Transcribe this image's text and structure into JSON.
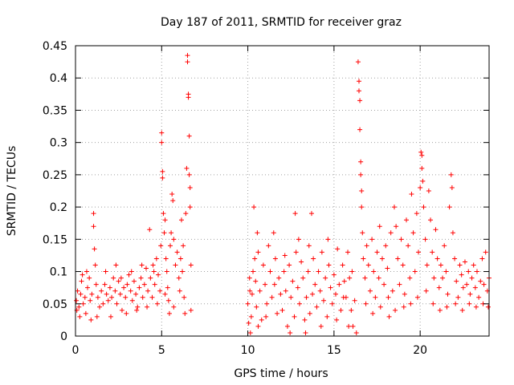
{
  "chart_data": {
    "type": "scatter",
    "title": "Day 187 of 2011, SRMTID for receiver graz",
    "xlabel": "GPS time / hours",
    "ylabel": "SRMTID / TECUs",
    "xlim": [
      0,
      24
    ],
    "ylim": [
      0,
      0.45
    ],
    "xticks": [
      0,
      5,
      10,
      15,
      20
    ],
    "xtick_labels": [
      "0",
      "5",
      "10",
      "15",
      "20"
    ],
    "yticks": [
      0,
      0.05,
      0.1,
      0.15,
      0.2,
      0.25,
      0.3,
      0.35,
      0.4,
      0.45
    ],
    "ytick_labels": [
      "0",
      "0.05",
      "0.1",
      "0.15",
      "0.2",
      "0.25",
      "0.3",
      "0.35",
      "0.4",
      "0.45"
    ],
    "grid": true,
    "marker": "+",
    "color": "#ff0000",
    "series": [
      {
        "name": "SRMTID",
        "points": [
          [
            0.05,
            0.055
          ],
          [
            0.12,
            0.07
          ],
          [
            0.2,
            0.045
          ],
          [
            0.3,
            0.065
          ],
          [
            0.35,
            0.085
          ],
          [
            0.45,
            0.05
          ],
          [
            0.55,
            0.06
          ],
          [
            0.6,
            0.035
          ],
          [
            0.7,
            0.075
          ],
          [
            0.8,
            0.09
          ],
          [
            0.85,
            0.055
          ],
          [
            0.95,
            0.065
          ],
          [
            1.05,
            0.19
          ],
          [
            1.05,
            0.17
          ],
          [
            1.1,
            0.135
          ],
          [
            1.15,
            0.11
          ],
          [
            1.2,
            0.08
          ],
          [
            1.3,
            0.06
          ],
          [
            1.4,
            0.045
          ],
          [
            1.5,
            0.07
          ],
          [
            1.6,
            0.05
          ],
          [
            1.7,
            0.08
          ],
          [
            1.8,
            0.065
          ],
          [
            1.9,
            0.055
          ],
          [
            2.0,
            0.075
          ],
          [
            2.1,
            0.06
          ],
          [
            2.2,
            0.09
          ],
          [
            2.3,
            0.07
          ],
          [
            2.4,
            0.05
          ],
          [
            2.5,
            0.085
          ],
          [
            2.6,
            0.065
          ],
          [
            2.7,
            0.04
          ],
          [
            2.8,
            0.075
          ],
          [
            2.9,
            0.06
          ],
          [
            3.0,
            0.08
          ],
          [
            3.1,
            0.095
          ],
          [
            3.2,
            0.07
          ],
          [
            3.3,
            0.055
          ],
          [
            3.4,
            0.085
          ],
          [
            3.5,
            0.065
          ],
          [
            3.6,
            0.045
          ],
          [
            3.7,
            0.075
          ],
          [
            3.8,
            0.09
          ],
          [
            3.9,
            0.06
          ],
          [
            4.0,
            0.08
          ],
          [
            4.1,
            0.105
          ],
          [
            4.2,
            0.07
          ],
          [
            4.3,
            0.165
          ],
          [
            4.35,
            0.09
          ],
          [
            4.45,
            0.06
          ],
          [
            4.55,
            0.1
          ],
          [
            4.6,
            0.08
          ],
          [
            4.7,
            0.12
          ],
          [
            4.8,
            0.095
          ],
          [
            4.9,
            0.07
          ],
          [
            5.0,
            0.315
          ],
          [
            5.0,
            0.3
          ],
          [
            5.05,
            0.255
          ],
          [
            5.05,
            0.245
          ],
          [
            5.1,
            0.19
          ],
          [
            5.15,
            0.16
          ],
          [
            5.2,
            0.18
          ],
          [
            5.25,
            0.12
          ],
          [
            5.3,
            0.1
          ],
          [
            5.35,
            0.075
          ],
          [
            5.4,
            0.055
          ],
          [
            5.45,
            0.035
          ],
          [
            5.5,
            0.14
          ],
          [
            5.55,
            0.16
          ],
          [
            5.6,
            0.22
          ],
          [
            5.65,
            0.21
          ],
          [
            5.7,
            0.15
          ],
          [
            5.8,
            0.11
          ],
          [
            5.9,
            0.13
          ],
          [
            6.0,
            0.09
          ],
          [
            6.05,
            0.07
          ],
          [
            6.1,
            0.12
          ],
          [
            6.15,
            0.18
          ],
          [
            6.2,
            0.1
          ],
          [
            6.3,
            0.06
          ],
          [
            6.4,
            0.19
          ],
          [
            6.45,
            0.26
          ],
          [
            6.5,
            0.435
          ],
          [
            6.5,
            0.425
          ],
          [
            6.55,
            0.375
          ],
          [
            6.55,
            0.37
          ],
          [
            6.6,
            0.31
          ],
          [
            6.6,
            0.25
          ],
          [
            6.65,
            0.23
          ],
          [
            6.65,
            0.2
          ],
          [
            6.7,
            0.11
          ],
          [
            6.7,
            0.04
          ],
          [
            0.08,
            0.04
          ],
          [
            0.25,
            0.03
          ],
          [
            0.4,
            0.095
          ],
          [
            0.65,
            0.1
          ],
          [
            0.9,
            0.025
          ],
          [
            1.25,
            0.03
          ],
          [
            1.75,
            0.1
          ],
          [
            2.05,
            0.03
          ],
          [
            2.35,
            0.11
          ],
          [
            2.65,
            0.09
          ],
          [
            2.95,
            0.035
          ],
          [
            3.25,
            0.1
          ],
          [
            3.55,
            0.04
          ],
          [
            3.85,
            0.11
          ],
          [
            4.15,
            0.045
          ],
          [
            4.5,
            0.11
          ],
          [
            4.75,
            0.05
          ],
          [
            4.95,
            0.14
          ],
          [
            5.2,
            0.065
          ],
          [
            5.7,
            0.045
          ],
          [
            6.25,
            0.14
          ],
          [
            6.35,
            0.035
          ],
          [
            10.0,
            0.05
          ],
          [
            10.05,
            0.02
          ],
          [
            10.1,
            0.09
          ],
          [
            10.15,
            0.005
          ],
          [
            10.2,
            0.03
          ],
          [
            10.25,
            0.065
          ],
          [
            10.3,
            0.1
          ],
          [
            10.35,
            0.2
          ],
          [
            10.4,
            0.12
          ],
          [
            10.45,
            0.085
          ],
          [
            10.5,
            0.045
          ],
          [
            10.55,
            0.16
          ],
          [
            10.6,
            0.13
          ],
          [
            10.7,
            0.07
          ],
          [
            10.8,
            0.025
          ],
          [
            10.9,
            0.11
          ],
          [
            11.0,
            0.08
          ],
          [
            11.1,
            0.05
          ],
          [
            11.2,
            0.14
          ],
          [
            11.3,
            0.1
          ],
          [
            11.4,
            0.06
          ],
          [
            11.5,
            0.16
          ],
          [
            11.6,
            0.12
          ],
          [
            11.7,
            0.035
          ],
          [
            11.8,
            0.09
          ],
          [
            11.9,
            0.065
          ],
          [
            12.0,
            0.04
          ],
          [
            12.1,
            0.1
          ],
          [
            12.2,
            0.07
          ],
          [
            12.3,
            0.015
          ],
          [
            12.4,
            0.11
          ],
          [
            12.5,
            0.06
          ],
          [
            12.6,
            0.085
          ],
          [
            12.7,
            0.03
          ],
          [
            12.75,
            0.19
          ],
          [
            12.8,
            0.13
          ],
          [
            12.9,
            0.075
          ],
          [
            13.0,
            0.05
          ],
          [
            13.1,
            0.115
          ],
          [
            13.2,
            0.09
          ],
          [
            13.3,
            0.025
          ],
          [
            13.4,
            0.06
          ],
          [
            13.5,
            0.1
          ],
          [
            13.55,
            0.14
          ],
          [
            13.6,
            0.035
          ],
          [
            13.7,
            0.19
          ],
          [
            13.8,
            0.12
          ],
          [
            13.9,
            0.08
          ],
          [
            14.0,
            0.045
          ],
          [
            14.1,
            0.1
          ],
          [
            14.2,
            0.07
          ],
          [
            14.3,
            0.13
          ],
          [
            14.4,
            0.055
          ],
          [
            14.5,
            0.09
          ],
          [
            14.6,
            0.03
          ],
          [
            14.7,
            0.11
          ],
          [
            14.8,
            0.075
          ],
          [
            14.9,
            0.05
          ],
          [
            15.0,
            0.095
          ],
          [
            15.1,
            0.065
          ],
          [
            15.2,
            0.135
          ],
          [
            15.3,
            0.08
          ],
          [
            15.4,
            0.04
          ],
          [
            15.5,
            0.11
          ],
          [
            15.6,
            0.085
          ],
          [
            15.7,
            0.06
          ],
          [
            15.8,
            0.13
          ],
          [
            15.9,
            0.09
          ],
          [
            16.0,
            0.04
          ],
          [
            16.1,
            0.015
          ],
          [
            16.2,
            0.055
          ],
          [
            16.3,
            0.005
          ],
          [
            16.4,
            0.425
          ],
          [
            16.45,
            0.395
          ],
          [
            16.45,
            0.38
          ],
          [
            16.5,
            0.365
          ],
          [
            16.5,
            0.32
          ],
          [
            16.55,
            0.27
          ],
          [
            16.55,
            0.25
          ],
          [
            16.6,
            0.225
          ],
          [
            16.6,
            0.2
          ],
          [
            16.65,
            0.16
          ],
          [
            16.7,
            0.12
          ],
          [
            16.8,
            0.09
          ],
          [
            16.9,
            0.14
          ],
          [
            17.0,
            0.11
          ],
          [
            17.1,
            0.07
          ],
          [
            17.2,
            0.15
          ],
          [
            17.3,
            0.1
          ],
          [
            17.4,
            0.06
          ],
          [
            17.5,
            0.13
          ],
          [
            17.6,
            0.09
          ],
          [
            17.7,
            0.045
          ],
          [
            17.8,
            0.12
          ],
          [
            17.9,
            0.08
          ],
          [
            18.0,
            0.14
          ],
          [
            18.1,
            0.105
          ],
          [
            18.2,
            0.03
          ],
          [
            18.3,
            0.16
          ],
          [
            18.4,
            0.07
          ],
          [
            18.5,
            0.2
          ],
          [
            18.6,
            0.17
          ],
          [
            18.7,
            0.12
          ],
          [
            18.8,
            0.08
          ],
          [
            18.9,
            0.15
          ],
          [
            19.0,
            0.11
          ],
          [
            19.1,
            0.065
          ],
          [
            19.2,
            0.18
          ],
          [
            19.3,
            0.14
          ],
          [
            19.4,
            0.09
          ],
          [
            19.5,
            0.22
          ],
          [
            19.6,
            0.16
          ],
          [
            19.7,
            0.1
          ],
          [
            19.8,
            0.19
          ],
          [
            19.9,
            0.13
          ],
          [
            20.0,
            0.23
          ],
          [
            20.05,
            0.285
          ],
          [
            20.1,
            0.28
          ],
          [
            20.1,
            0.26
          ],
          [
            20.15,
            0.24
          ],
          [
            20.2,
            0.2
          ],
          [
            20.3,
            0.15
          ],
          [
            20.4,
            0.11
          ],
          [
            20.5,
            0.225
          ],
          [
            20.6,
            0.18
          ],
          [
            20.7,
            0.13
          ],
          [
            20.8,
            0.09
          ],
          [
            20.9,
            0.165
          ],
          [
            21.0,
            0.12
          ],
          [
            21.1,
            0.075
          ],
          [
            21.2,
            0.11
          ],
          [
            21.3,
            0.09
          ],
          [
            21.4,
            0.14
          ],
          [
            21.5,
            0.1
          ],
          [
            21.6,
            0.065
          ],
          [
            21.7,
            0.2
          ],
          [
            21.8,
            0.25
          ],
          [
            21.85,
            0.23
          ],
          [
            21.9,
            0.16
          ],
          [
            22.0,
            0.12
          ],
          [
            22.1,
            0.085
          ],
          [
            22.2,
            0.06
          ],
          [
            22.3,
            0.11
          ],
          [
            22.4,
            0.095
          ],
          [
            22.5,
            0.075
          ],
          [
            22.6,
            0.115
          ],
          [
            22.7,
            0.08
          ],
          [
            22.8,
            0.1
          ],
          [
            22.9,
            0.065
          ],
          [
            23.0,
            0.09
          ],
          [
            23.1,
            0.11
          ],
          [
            23.2,
            0.075
          ],
          [
            23.3,
            0.1
          ],
          [
            23.4,
            0.06
          ],
          [
            23.5,
            0.085
          ],
          [
            23.6,
            0.12
          ],
          [
            23.7,
            0.08
          ],
          [
            23.8,
            0.13
          ],
          [
            23.9,
            0.07
          ],
          [
            24.0,
            0.09
          ],
          [
            10.12,
            0.07
          ],
          [
            10.6,
            0.015
          ],
          [
            11.05,
            0.03
          ],
          [
            11.55,
            0.08
          ],
          [
            12.15,
            0.125
          ],
          [
            12.45,
            0.005
          ],
          [
            12.95,
            0.15
          ],
          [
            13.35,
            0.005
          ],
          [
            13.75,
            0.065
          ],
          [
            14.25,
            0.015
          ],
          [
            14.65,
            0.15
          ],
          [
            15.15,
            0.025
          ],
          [
            15.55,
            0.06
          ],
          [
            15.85,
            0.015
          ],
          [
            16.05,
            0.1
          ],
          [
            16.85,
            0.05
          ],
          [
            17.25,
            0.035
          ],
          [
            17.65,
            0.17
          ],
          [
            18.15,
            0.06
          ],
          [
            18.55,
            0.04
          ],
          [
            19.05,
            0.045
          ],
          [
            19.45,
            0.05
          ],
          [
            19.85,
            0.06
          ],
          [
            20.35,
            0.07
          ],
          [
            20.75,
            0.05
          ],
          [
            21.15,
            0.04
          ],
          [
            21.55,
            0.045
          ],
          [
            22.05,
            0.05
          ],
          [
            22.45,
            0.04
          ],
          [
            22.85,
            0.05
          ],
          [
            23.25,
            0.045
          ],
          [
            23.65,
            0.05
          ],
          [
            23.95,
            0.045
          ]
        ]
      }
    ]
  }
}
